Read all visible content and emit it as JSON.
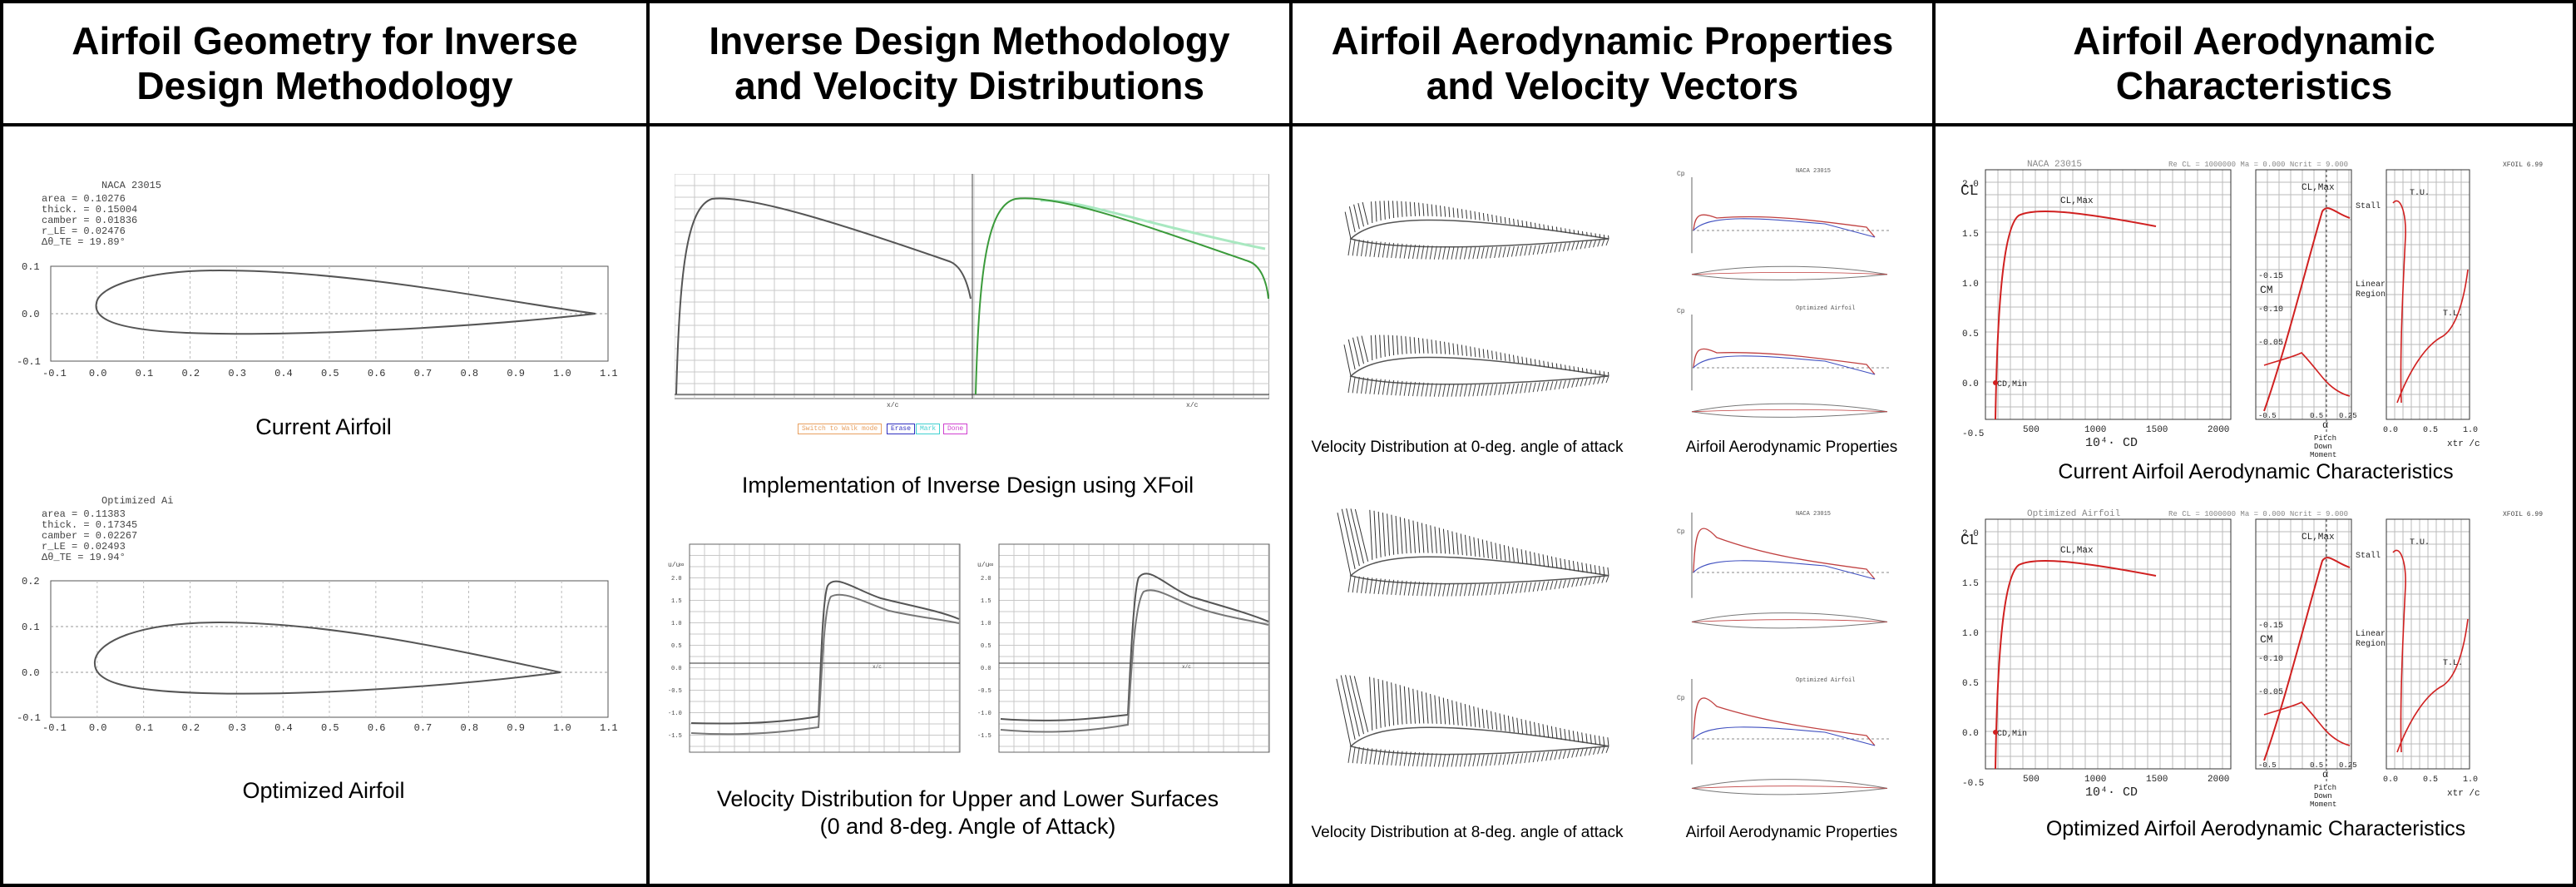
{
  "panels": [
    {
      "title_l1": "Airfoil Geometry for Inverse",
      "title_l2": "Design Methodology"
    },
    {
      "title_l1": "Inverse Design Methodology",
      "title_l2": "and Velocity Distributions"
    },
    {
      "title_l1": "Airfoil Aerodynamic Properties",
      "title_l2": "and Velocity Vectors"
    },
    {
      "title_l1": "Airfoil Aerodynamic",
      "title_l2": "Characteristics"
    }
  ],
  "geometry": {
    "current": {
      "name": "NACA 23015",
      "params": [
        "area   = 0.10276",
        "thick. = 0.15004",
        "camber = 0.01836",
        "r_LE   = 0.02476",
        "Δθ_TE  = 19.89°"
      ],
      "caption": "Current Airfoil",
      "y_ticks": [
        "0.1",
        "0.0",
        "-0.1"
      ]
    },
    "optimized": {
      "name": "Optimized Ai",
      "params": [
        "area   = 0.11383",
        "thick. = 0.17345",
        "camber = 0.02267",
        "r_LE   = 0.02493",
        "Δθ_TE  = 19.94°"
      ],
      "caption": "Optimized Airfoil",
      "y_ticks": [
        "0.2",
        "0.1",
        "0.0",
        "-0.1"
      ]
    },
    "x_ticks": [
      "-0.1",
      "0.0",
      "0.1",
      "0.2",
      "0.3",
      "0.4",
      "0.5",
      "0.6",
      "0.7",
      "0.8",
      "0.9",
      "1.0",
      "1.1"
    ]
  },
  "inverse": {
    "caption": "Implementation of Inverse Design using XFoil",
    "caption2_l1": "Velocity Distribution for Upper and Lower Surfaces",
    "caption2_l2": "(0 and 8-deg. Angle of Attack)",
    "buttons": [
      "Switch to Walk mode",
      "Erase",
      "Mark",
      "Done"
    ],
    "xlabel": "x/c",
    "ylabel": "u/u∞",
    "vel_ticks": [
      "2.0",
      "1.5",
      "1.0",
      "0.5",
      "0.0",
      "-0.5",
      "-1.0",
      "-1.5"
    ],
    "colors": {
      "orange": "#e8a060",
      "blue": "#3030c0",
      "cyan": "#40d0d0",
      "magenta": "#d040d0",
      "green": "#3a9a3a",
      "lightgreen": "#a8e8c0"
    }
  },
  "aero": {
    "captions": [
      "Velocity Distribution at 0-deg. angle of attack",
      "Airfoil Aerodynamic Properties",
      "Velocity Distribution at 8-deg. angle of attack",
      "Airfoil Aerodynamic Properties"
    ],
    "small_labels": [
      "NACA 23015",
      "Optimized Airfoil",
      "NACA 23015",
      "Optimized Airfoil"
    ],
    "cp_label": "Cp"
  },
  "charac": {
    "current": {
      "name": "NACA 23015",
      "header": "Re CL = 1000000    Ma = 0.000    Ncrit = 9.000",
      "caption": "Current Airfoil Aerodynamic Characteristics"
    },
    "optimized": {
      "name": "Optimized Airfoil",
      "header": "Re CL = 1000000    Ma = 0.000    Ncrit = 9.000",
      "caption": "Optimized Airfoil Aerodynamic Characteristics"
    },
    "cl_label": "CL",
    "clmax_label": "CL,Max",
    "cdmin_label": "CD,Min",
    "cd_axis": "10⁴· CD",
    "cd_ticks": [
      "500",
      "1000",
      "1500",
      "2000"
    ],
    "cl_ticks": [
      "2.0",
      "1.5",
      "1.0",
      "0.5",
      "0.0",
      "-0.5"
    ],
    "cm_label": "CM",
    "cm_ticks": [
      "-0.15",
      "-0.10",
      "-0.05"
    ],
    "cm_axis_ticks": [
      "-0.5",
      "0.5",
      "0.25"
    ],
    "stall": "Stall",
    "linear_region_l1": "Linear",
    "linear_region_l2": "Region",
    "pitch_l1": "Pitch",
    "pitch_l2": "Down",
    "pitch_l3": "Moment",
    "alpha": "α",
    "xtr_axis": "xtr /c",
    "xtr_ticks": [
      "0.0",
      "0.5",
      "1.0"
    ],
    "tu": "T.U.",
    "tl": "T.L.",
    "xfoil_tag": "XFOIL 6.99"
  }
}
